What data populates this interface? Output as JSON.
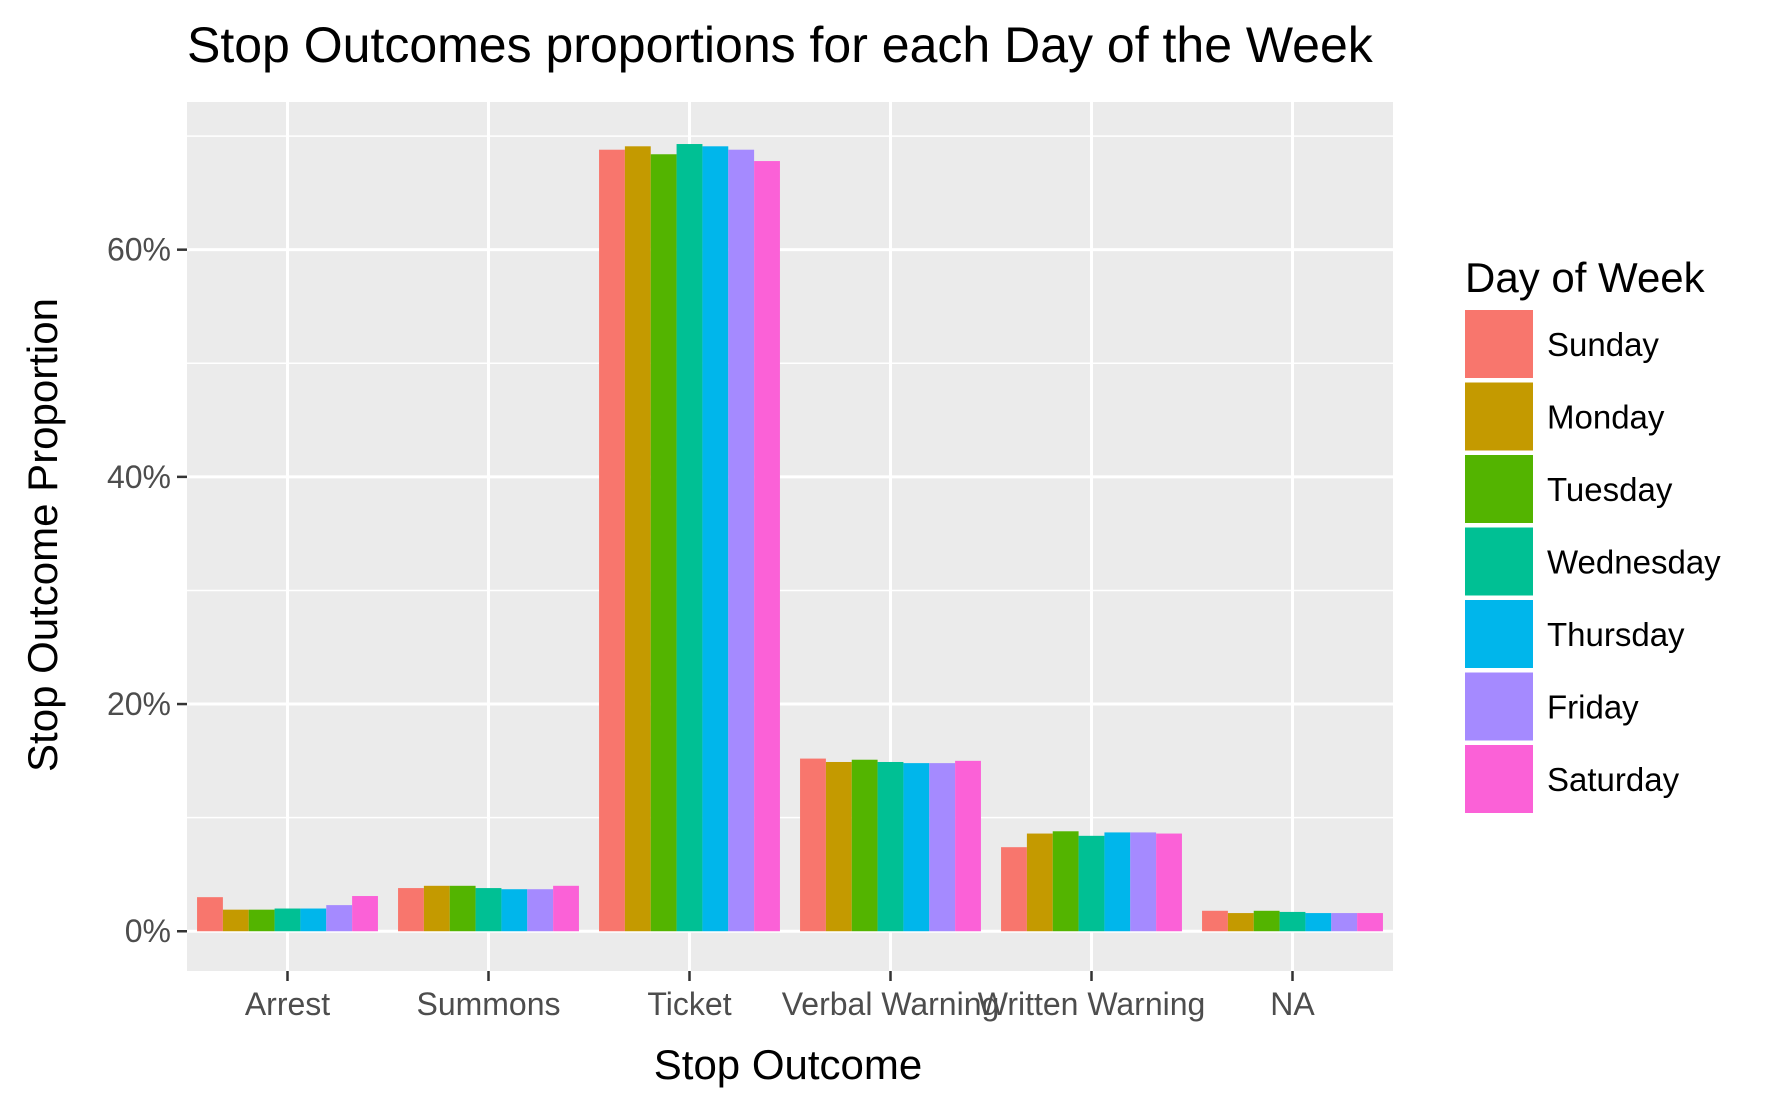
{
  "chart_data": {
    "type": "bar",
    "title": "Stop Outcomes proportions for each Day of the Week",
    "xlabel": "Stop Outcome",
    "ylabel": "Stop Outcome Proportion",
    "categories": [
      "Arrest",
      "Summons",
      "Ticket",
      "Verbal Warning",
      "Written Warning",
      "NA"
    ],
    "ylim": [
      -0.035,
      0.73
    ],
    "yticks": [
      0,
      0.2,
      0.4,
      0.6
    ],
    "ytick_labels": [
      "0%",
      "20%",
      "40%",
      "60%"
    ],
    "grid": true,
    "legend": {
      "title": "Day of Week",
      "placement": "right"
    },
    "series": [
      {
        "name": "Sunday",
        "color": "#F8766D",
        "values": [
          0.03,
          0.038,
          0.688,
          0.152,
          0.074,
          0.018
        ]
      },
      {
        "name": "Monday",
        "color": "#C49A00",
        "values": [
          0.019,
          0.04,
          0.691,
          0.149,
          0.086,
          0.016
        ]
      },
      {
        "name": "Tuesday",
        "color": "#53B400",
        "values": [
          0.019,
          0.04,
          0.684,
          0.151,
          0.088,
          0.018
        ]
      },
      {
        "name": "Wednesday",
        "color": "#00C094",
        "values": [
          0.02,
          0.038,
          0.693,
          0.149,
          0.084,
          0.017
        ]
      },
      {
        "name": "Thursday",
        "color": "#00B6EB",
        "values": [
          0.02,
          0.037,
          0.691,
          0.148,
          0.087,
          0.016
        ]
      },
      {
        "name": "Friday",
        "color": "#A58AFF",
        "values": [
          0.023,
          0.037,
          0.688,
          0.148,
          0.087,
          0.016
        ]
      },
      {
        "name": "Saturday",
        "color": "#FB61D7",
        "values": [
          0.031,
          0.04,
          0.678,
          0.15,
          0.086,
          0.016
        ]
      }
    ]
  }
}
